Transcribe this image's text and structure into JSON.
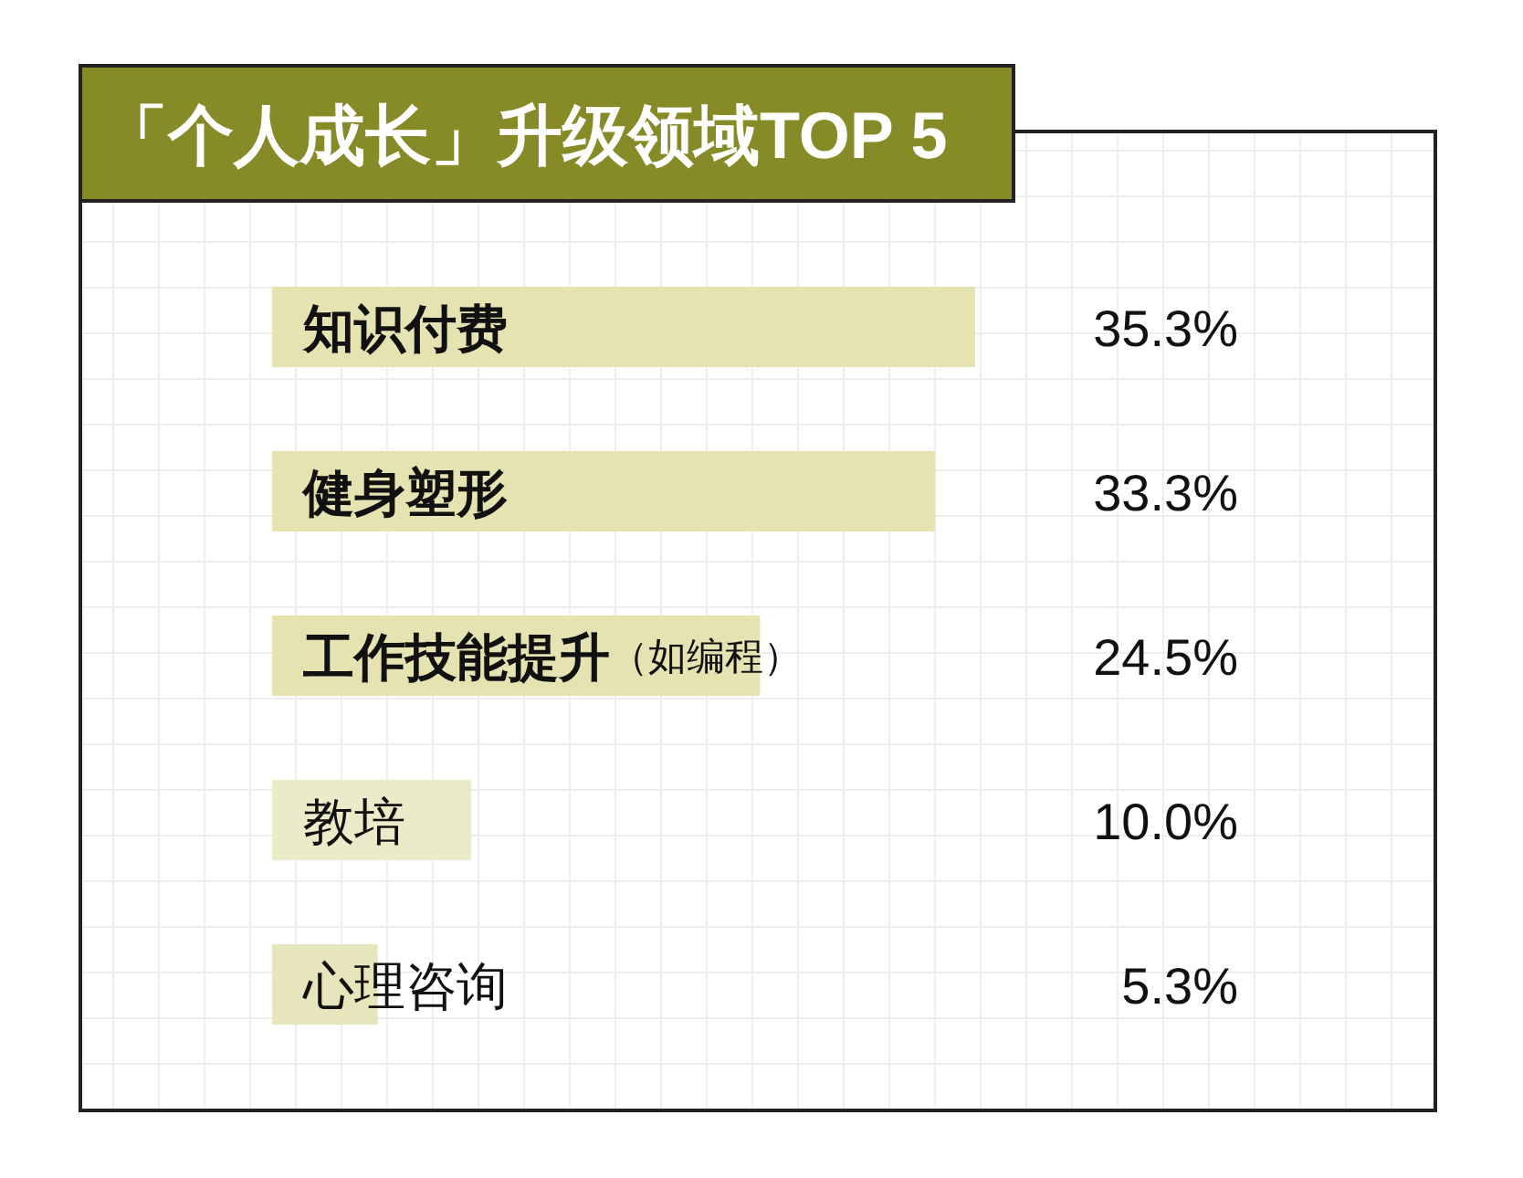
{
  "chart_data": {
    "type": "bar",
    "orientation": "horizontal",
    "title": "「个人成长」升级领域TOP 5",
    "categories": [
      "知识付费",
      "健身塑形",
      "工作技能提升（如编程）",
      "教培",
      "心理咨询"
    ],
    "values": [
      35.3,
      33.3,
      24.5,
      10.0,
      5.3
    ],
    "value_labels": [
      "35.3%",
      "33.3%",
      "24.5%",
      "10.0%",
      "5.3%"
    ],
    "colors": [
      "#e5e3b1",
      "#e5e3b1",
      "#e5e3b1",
      "#ebeac9",
      "#e7e5bb"
    ],
    "tick_labels": "y",
    "grid": true
  }
}
